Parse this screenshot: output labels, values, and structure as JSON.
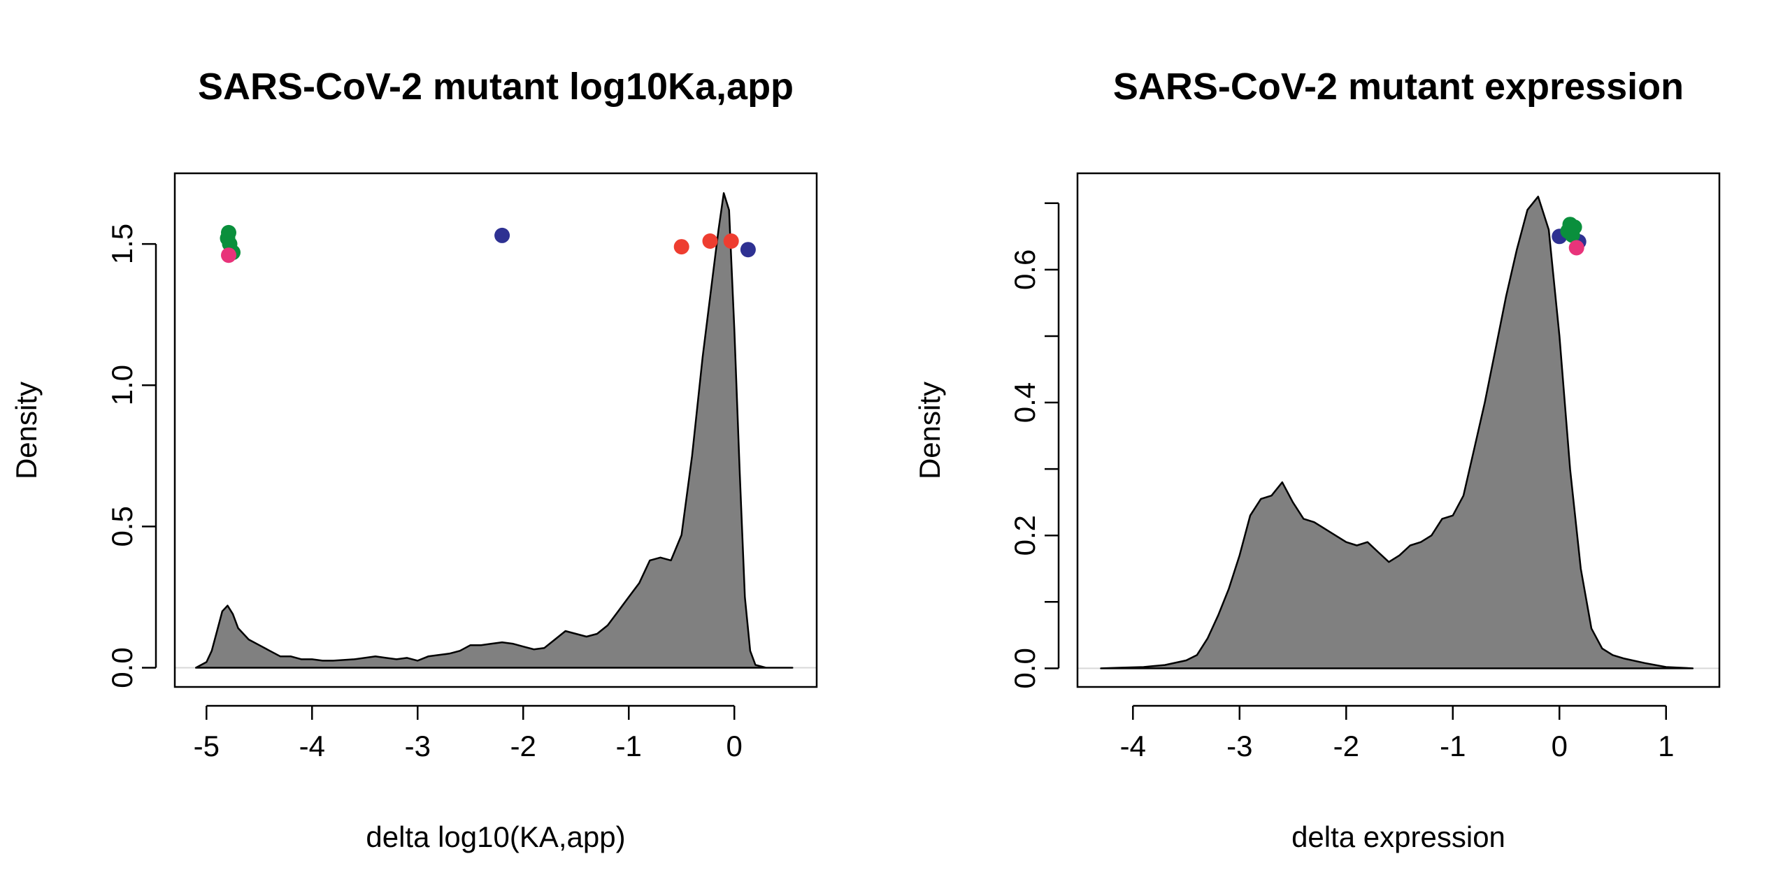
{
  "figure": {
    "background": "#ffffff",
    "density_fill": "#808080",
    "point_colors": {
      "blue": "#2E3192",
      "green": "#0A8F3C",
      "red": "#EE3D30",
      "pink": "#E8337A"
    }
  },
  "chart_data": [
    {
      "type": "area",
      "title": "SARS-CoV-2 mutant log10Ka,app",
      "xlabel": "delta log10(KA,app)",
      "ylabel": "Density",
      "xlim": [
        -5.3,
        0.78
      ],
      "ylim": [
        -0.068,
        1.75
      ],
      "grid": false,
      "legend": "none",
      "x_ticks": [
        -5,
        -4,
        -3,
        -2,
        -1,
        0
      ],
      "x_tick_labels": [
        "-5",
        "-4",
        "-3",
        "-2",
        "-1",
        "0"
      ],
      "y_ticks": [
        0.0,
        0.5,
        1.0,
        1.5
      ],
      "y_tick_labels": [
        "0.0",
        "0.5",
        "1.0",
        "1.5"
      ],
      "series": [
        {
          "x": [
            -5.1,
            -5.0,
            -4.95,
            -4.9,
            -4.85,
            -4.8,
            -4.75,
            -4.7,
            -4.6,
            -4.5,
            -4.4,
            -4.3,
            -4.2,
            -4.1,
            -4.0,
            -3.9,
            -3.8,
            -3.6,
            -3.4,
            -3.3,
            -3.2,
            -3.1,
            -3.0,
            -2.9,
            -2.8,
            -2.7,
            -2.6,
            -2.5,
            -2.4,
            -2.3,
            -2.2,
            -2.1,
            -2.0,
            -1.9,
            -1.8,
            -1.7,
            -1.6,
            -1.5,
            -1.4,
            -1.3,
            -1.2,
            -1.1,
            -1.0,
            -0.9,
            -0.8,
            -0.7,
            -0.6,
            -0.5,
            -0.4,
            -0.3,
            -0.2,
            -0.15,
            -0.1,
            -0.05,
            0.0,
            0.05,
            0.1,
            0.15,
            0.2,
            0.3,
            0.4,
            0.55
          ],
          "values": [
            0.0,
            0.02,
            0.06,
            0.13,
            0.2,
            0.22,
            0.19,
            0.14,
            0.1,
            0.08,
            0.06,
            0.04,
            0.04,
            0.03,
            0.03,
            0.025,
            0.025,
            0.03,
            0.04,
            0.035,
            0.03,
            0.035,
            0.025,
            0.04,
            0.045,
            0.05,
            0.06,
            0.08,
            0.08,
            0.085,
            0.09,
            0.085,
            0.075,
            0.065,
            0.07,
            0.1,
            0.13,
            0.12,
            0.11,
            0.12,
            0.15,
            0.2,
            0.25,
            0.3,
            0.38,
            0.39,
            0.38,
            0.47,
            0.75,
            1.1,
            1.4,
            1.55,
            1.68,
            1.62,
            1.2,
            0.7,
            0.25,
            0.06,
            0.01,
            0.0,
            0.0,
            0.0
          ]
        }
      ],
      "points": [
        {
          "x": -4.79,
          "y": 1.54,
          "color": "green"
        },
        {
          "x": -4.8,
          "y": 1.52,
          "color": "green"
        },
        {
          "x": -4.78,
          "y": 1.5,
          "color": "green"
        },
        {
          "x": -4.75,
          "y": 1.47,
          "color": "green"
        },
        {
          "x": -4.79,
          "y": 1.46,
          "color": "pink"
        },
        {
          "x": -2.2,
          "y": 1.53,
          "color": "blue"
        },
        {
          "x": -0.5,
          "y": 1.49,
          "color": "red"
        },
        {
          "x": -0.23,
          "y": 1.51,
          "color": "red"
        },
        {
          "x": -0.03,
          "y": 1.51,
          "color": "red"
        },
        {
          "x": 0.13,
          "y": 1.48,
          "color": "blue"
        }
      ]
    },
    {
      "type": "area",
      "title": "SARS-CoV-2 mutant expression",
      "xlabel": "delta expression",
      "ylabel": "Density",
      "xlim": [
        -4.52,
        1.5
      ],
      "ylim": [
        -0.028,
        0.745
      ],
      "grid": false,
      "legend": "none",
      "x_ticks": [
        -4,
        -3,
        -2,
        -1,
        0,
        1
      ],
      "x_tick_labels": [
        "-4",
        "-3",
        "-2",
        "-1",
        "0",
        "1"
      ],
      "y_ticks": [
        0.0,
        0.1,
        0.2,
        0.3,
        0.4,
        0.5,
        0.6,
        0.7
      ],
      "y_tick_labels": [
        "0.0",
        "",
        "0.2",
        "",
        "0.4",
        "",
        "0.6",
        ""
      ],
      "series": [
        {
          "x": [
            -4.3,
            -4.1,
            -3.9,
            -3.7,
            -3.5,
            -3.4,
            -3.3,
            -3.2,
            -3.1,
            -3.0,
            -2.9,
            -2.8,
            -2.7,
            -2.6,
            -2.5,
            -2.4,
            -2.3,
            -2.2,
            -2.1,
            -2.0,
            -1.9,
            -1.8,
            -1.7,
            -1.6,
            -1.5,
            -1.4,
            -1.3,
            -1.2,
            -1.1,
            -1.0,
            -0.9,
            -0.8,
            -0.7,
            -0.6,
            -0.5,
            -0.4,
            -0.3,
            -0.2,
            -0.1,
            0.0,
            0.1,
            0.2,
            0.3,
            0.4,
            0.5,
            0.6,
            0.8,
            1.0,
            1.25
          ],
          "values": [
            0.0,
            0.001,
            0.002,
            0.005,
            0.012,
            0.02,
            0.045,
            0.08,
            0.12,
            0.17,
            0.23,
            0.255,
            0.26,
            0.28,
            0.25,
            0.225,
            0.22,
            0.21,
            0.2,
            0.19,
            0.185,
            0.19,
            0.175,
            0.16,
            0.17,
            0.185,
            0.19,
            0.2,
            0.225,
            0.23,
            0.26,
            0.33,
            0.4,
            0.48,
            0.56,
            0.63,
            0.69,
            0.71,
            0.66,
            0.5,
            0.3,
            0.15,
            0.06,
            0.03,
            0.02,
            0.015,
            0.008,
            0.002,
            0.0
          ]
        }
      ],
      "points": [
        {
          "x": 0.0,
          "y": 0.65,
          "color": "blue"
        },
        {
          "x": 0.18,
          "y": 0.642,
          "color": "blue"
        },
        {
          "x": 0.1,
          "y": 0.668,
          "color": "green"
        },
        {
          "x": 0.14,
          "y": 0.664,
          "color": "green"
        },
        {
          "x": 0.08,
          "y": 0.658,
          "color": "green"
        },
        {
          "x": 0.12,
          "y": 0.652,
          "color": "green"
        },
        {
          "x": 0.16,
          "y": 0.633,
          "color": "pink"
        }
      ]
    }
  ]
}
